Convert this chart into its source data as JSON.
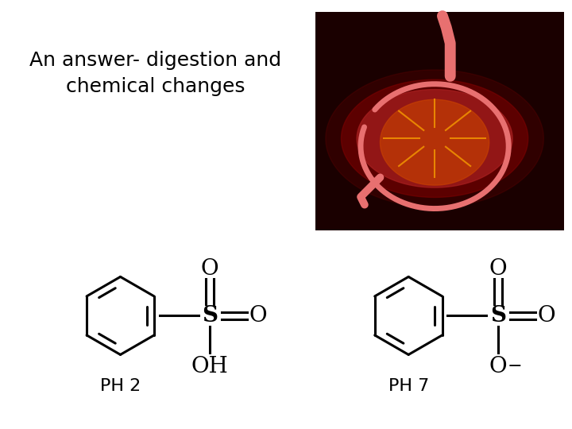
{
  "title_line1": "An answer- digestion and",
  "title_line2": "chemical changes",
  "label_ph2": "PH 2",
  "label_ph7": "PH 7",
  "bg_color": "#ffffff",
  "text_color": "#000000",
  "title_fontsize": 18,
  "label_fontsize": 16,
  "structure_color": "#000000",
  "stomach_box_color": "#1a0000",
  "stomach_pink": "#e87070",
  "stomach_yellow": "#ffaa00"
}
